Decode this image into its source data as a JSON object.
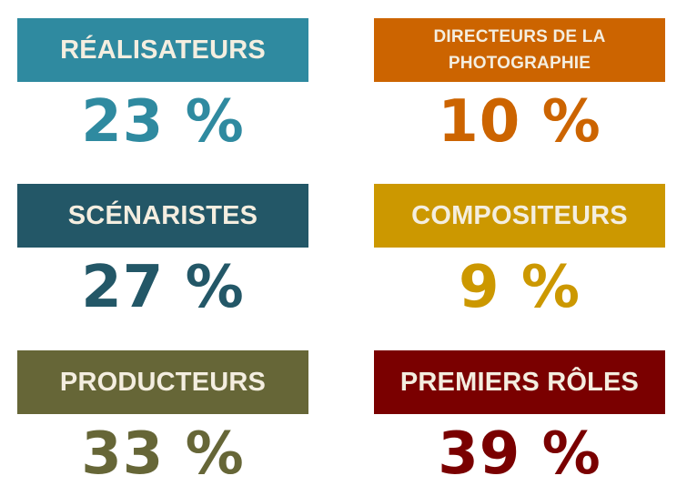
{
  "stats": [
    {
      "label": "RÉALISATEURS",
      "value": "23 %",
      "color": "#2f8aa0"
    },
    {
      "label": "DIRECTEURS DE LA PHOTOGRAPHIE",
      "value": "10 %",
      "color": "#cc6400"
    },
    {
      "label": "SCÉNARISTES",
      "value": "27 %",
      "color": "#235767"
    },
    {
      "label": "COMPOSITEURS",
      "value": "9 %",
      "color": "#cc9800"
    },
    {
      "label": "PRODUCTEURS",
      "value": "33 %",
      "color": "#666637"
    },
    {
      "label": "PREMIERS RÔLES",
      "value": "39 %",
      "color": "#7a0000"
    }
  ]
}
